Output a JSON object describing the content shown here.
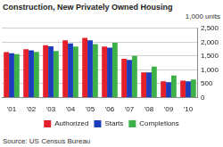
{
  "chart_data": {
    "type": "bar",
    "title": "Construction, New Privately Owned Housing",
    "y_label": "1,000 units",
    "source": "Source: US Census Bureau",
    "categories": [
      "'01",
      "'02",
      "'03",
      "'04",
      "'05",
      "'06",
      "'07",
      "'08",
      "'09",
      "'10"
    ],
    "series": [
      {
        "name": "Authorized",
        "color": "#e4202b",
        "values": [
          1637,
          1748,
          1889,
          2070,
          2155,
          1839,
          1398,
          905,
          583,
          605
        ]
      },
      {
        "name": "Starts",
        "color": "#1c3ebd",
        "values": [
          1603,
          1705,
          1848,
          1956,
          2068,
          1801,
          1355,
          906,
          554,
          587
        ]
      },
      {
        "name": "Completions",
        "color": "#3db04a",
        "values": [
          1571,
          1648,
          1679,
          1842,
          1931,
          1979,
          1503,
          1120,
          794,
          652
        ]
      }
    ],
    "ylim": [
      0,
      2500
    ],
    "yticks": [
      0,
      500,
      {
        "value": 1000,
        "label": "1,000"
      },
      {
        "value": 1500,
        "label": "1,500"
      },
      {
        "value": 2000,
        "label": "2,000"
      },
      {
        "value": 2500,
        "label": "2,500"
      }
    ],
    "grid": true,
    "legend": "bottom"
  }
}
